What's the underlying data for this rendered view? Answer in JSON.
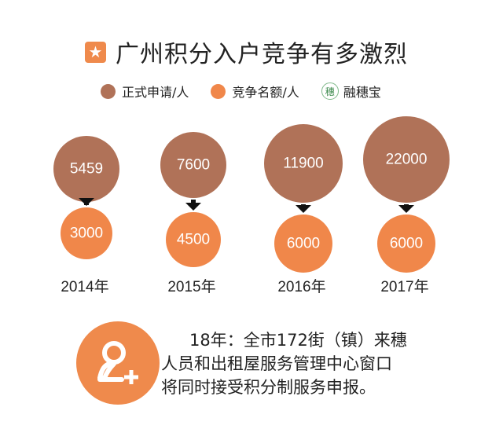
{
  "title": {
    "text": "广州积分入户竞争有多激烈",
    "icon": "star-icon"
  },
  "legend": [
    {
      "label": "正式申请/人",
      "color": "#b07258"
    },
    {
      "label": "竞争名额/人",
      "color": "#f0874a"
    },
    {
      "label": "融穗宝",
      "icon": "rongsuibao-logo",
      "logo_text": "穗"
    }
  ],
  "chart_data": {
    "type": "bubble",
    "title": "广州积分入户竞争有多激烈",
    "categories": [
      "2014年",
      "2015年",
      "2016年",
      "2017年"
    ],
    "series": [
      {
        "name": "正式申请/人",
        "color": "#b07258",
        "values": [
          5459,
          7600,
          11900,
          22000
        ]
      },
      {
        "name": "竞争名额/人",
        "color": "#f0874a",
        "values": [
          3000,
          4500,
          6000,
          6000
        ]
      }
    ],
    "labels": {
      "applications": [
        "5459",
        "7600",
        "11900",
        "22000"
      ],
      "quota": [
        "3000",
        "4500",
        "6000",
        "6000"
      ]
    }
  },
  "note": {
    "icon": "add-user-icon",
    "lines": [
      "18年：全市172街（镇）来穗",
      "人员和出租屋服务管理中心窗口",
      "将同时接受积分制服务申报。"
    ]
  }
}
